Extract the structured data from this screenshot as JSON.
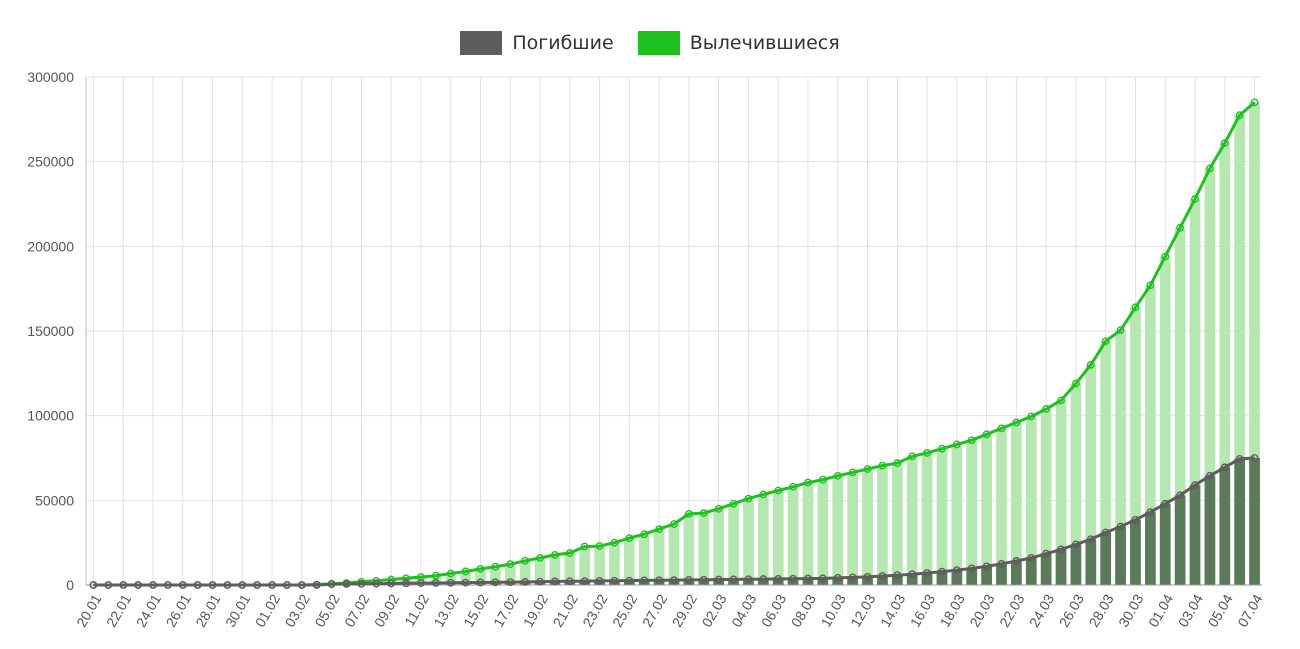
{
  "colors": {
    "deaths": "#5f5c5c",
    "deaths_bar": "#5a7a5a",
    "recovered": "#1ec21e",
    "recovered_bar": "#b5e8b0",
    "grid": "#e2e2e2"
  },
  "chart_data": {
    "type": "bar",
    "grid": true,
    "legend": "top-center",
    "ylim": [
      0,
      300000
    ],
    "yticks": [
      0,
      50000,
      100000,
      150000,
      200000,
      250000,
      300000
    ],
    "x": [
      "20.01",
      "21.01",
      "22.01",
      "23.01",
      "24.01",
      "25.01",
      "26.01",
      "27.01",
      "28.01",
      "29.01",
      "30.01",
      "31.01",
      "01.02",
      "02.02",
      "03.02",
      "04.02",
      "05.02",
      "06.02",
      "07.02",
      "08.02",
      "09.02",
      "10.02",
      "11.02",
      "12.02",
      "13.02",
      "14.02",
      "15.02",
      "16.02",
      "17.02",
      "18.02",
      "19.02",
      "20.02",
      "21.02",
      "22.02",
      "23.02",
      "24.02",
      "25.02",
      "26.02",
      "27.02",
      "28.02",
      "29.02",
      "01.03",
      "02.03",
      "03.03",
      "04.03",
      "05.03",
      "06.03",
      "07.03",
      "08.03",
      "09.03",
      "10.03",
      "11.03",
      "12.03",
      "13.03",
      "14.03",
      "15.03",
      "16.03",
      "17.03",
      "18.03",
      "19.03",
      "20.03",
      "21.03",
      "22.03",
      "23.03",
      "24.03",
      "25.03",
      "26.03",
      "27.03",
      "28.03",
      "29.03",
      "30.03",
      "31.03",
      "01.04",
      "02.04",
      "03.04",
      "04.04",
      "05.04",
      "06.04",
      "07.04"
    ],
    "xticks": [
      "20.01",
      "22.01",
      "24.01",
      "26.01",
      "28.01",
      "30.01",
      "01.02",
      "03.02",
      "05.02",
      "07.02",
      "09.02",
      "11.02",
      "13.02",
      "15.02",
      "17.02",
      "19.02",
      "21.02",
      "23.02",
      "25.02",
      "27.02",
      "29.02",
      "02.03",
      "04.03",
      "06.03",
      "08.03",
      "10.03",
      "12.03",
      "14.03",
      "16.03",
      "18.03",
      "20.03",
      "22.03",
      "24.03",
      "26.03",
      "28.03",
      "30.03",
      "01.04",
      "03.04",
      "05.04",
      "07.04"
    ],
    "series": [
      {
        "name": "Погибшие",
        "values": [
          0,
          0,
          0,
          0,
          0,
          0,
          0,
          0,
          0,
          0,
          0,
          0,
          0,
          0,
          0,
          0,
          500,
          600,
          700,
          800,
          900,
          1000,
          1100,
          1200,
          1300,
          1400,
          1500,
          1600,
          1700,
          1800,
          2000,
          2100,
          2200,
          2300,
          2400,
          2500,
          2600,
          2700,
          2800,
          2900,
          3000,
          3100,
          3200,
          3300,
          3400,
          3500,
          3600,
          3700,
          3800,
          3900,
          4200,
          4500,
          4800,
          5300,
          5800,
          6400,
          7100,
          7900,
          8800,
          9800,
          11000,
          12500,
          14200,
          16000,
          18500,
          21000,
          24000,
          27000,
          31000,
          34500,
          38500,
          43000,
          48000,
          53000,
          59000,
          64500,
          69500,
          74500,
          75000
        ]
      },
      {
        "name": "Вылечившиеся",
        "values": [
          0,
          0,
          0,
          0,
          0,
          0,
          0,
          0,
          0,
          0,
          0,
          0,
          0,
          0,
          0,
          300,
          700,
          1200,
          1900,
          2500,
          3200,
          4000,
          4700,
          5500,
          6800,
          8000,
          9500,
          10800,
          12300,
          14300,
          16000,
          17800,
          18900,
          22700,
          23000,
          25000,
          27700,
          30000,
          33000,
          36000,
          42000,
          42500,
          45000,
          48000,
          51000,
          53500,
          55800,
          58000,
          60500,
          62200,
          64500,
          66500,
          68500,
          70500,
          72000,
          76000,
          78000,
          80500,
          83000,
          85500,
          89000,
          92500,
          96000,
          99500,
          104000,
          109000,
          119000,
          130000,
          144000,
          150500,
          164000,
          177000,
          194000,
          211000,
          228000,
          246000,
          261000,
          277500,
          285000
        ]
      }
    ]
  }
}
